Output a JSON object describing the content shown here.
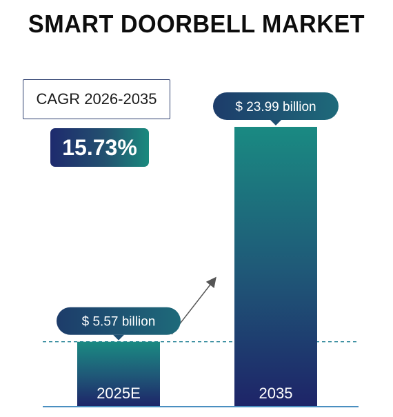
{
  "title": "SMART DOORBELL MARKET",
  "cagr": {
    "label": "CAGR 2026-2035",
    "value": "15.73%"
  },
  "chart_data": {
    "type": "bar",
    "categories": [
      "2025E",
      "2035"
    ],
    "values": [
      5.57,
      23.99
    ],
    "value_labels": [
      "$ 5.57 billion",
      "$ 23.99 billion"
    ],
    "unit": "USD billion",
    "grid": false,
    "colors": {
      "bar_top": "#1a8a82",
      "bar_bottom": "#1e2468",
      "bubble": "#1f4e72",
      "arrow": "#555555",
      "dashed_line": "#3a8fa0",
      "baseline": "#4a8fc0"
    }
  }
}
